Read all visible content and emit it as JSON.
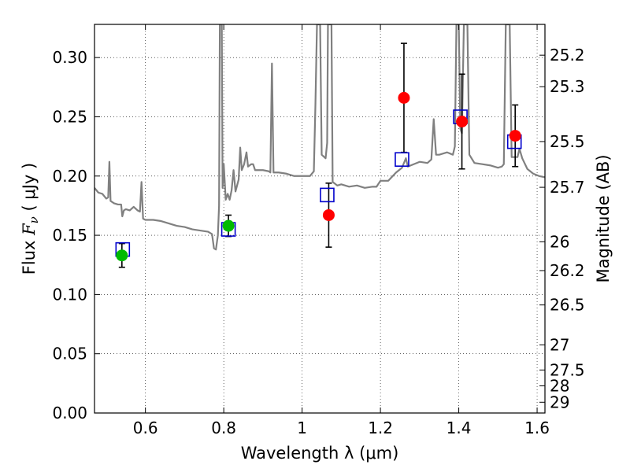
{
  "chart_data": {
    "type": "scatter",
    "title": "",
    "xlabel": "Wavelength  λ (μm)",
    "ylabel_prefix": "Flux  ",
    "ylabel_symbol": "F",
    "ylabel_subscript": "ν",
    "ylabel_suffix": "  ( μJy )",
    "y2label": "Magnitude (AB)",
    "xlim": [
      0.47,
      1.62
    ],
    "ylim": [
      0.0,
      0.328
    ],
    "grid": true,
    "x_ticks": [
      0.6,
      0.8,
      1.0,
      1.2,
      1.4,
      1.6
    ],
    "x_tick_labels": [
      "0.6",
      "0.8",
      "1",
      "1.2",
      "1.4",
      "1.6"
    ],
    "y_ticks": [
      0.0,
      0.05,
      0.1,
      0.15,
      0.2,
      0.25,
      0.3
    ],
    "y_tick_labels": [
      "0.00",
      "0.05",
      "0.10",
      "0.15",
      "0.20",
      "0.25",
      "0.30"
    ],
    "y2_ticks": [
      {
        "label": "25.2",
        "flux": 0.302
      },
      {
        "label": "25.3",
        "flux": 0.2754
      },
      {
        "label": "25.5",
        "flux": 0.2291
      },
      {
        "label": "25.7",
        "flux": 0.1905
      },
      {
        "label": "26",
        "flux": 0.1445
      },
      {
        "label": "26.2",
        "flux": 0.1202
      },
      {
        "label": "26.5",
        "flux": 0.0912
      },
      {
        "label": "27",
        "flux": 0.0575
      },
      {
        "label": "27.5",
        "flux": 0.0363
      },
      {
        "label": "28",
        "flux": 0.0229
      },
      {
        "label": "29",
        "flux": 0.0091
      }
    ],
    "colors": {
      "model": "#808080",
      "green_points": "#00bb00",
      "red_points": "#ff0000",
      "model_boxes": "#0000cc",
      "error_bars": "#000000"
    },
    "series": [
      {
        "kind": "model_spectrum",
        "points": [
          [
            0.47,
            0.19
          ],
          [
            0.48,
            0.186
          ],
          [
            0.49,
            0.185
          ],
          [
            0.5,
            0.181
          ],
          [
            0.505,
            0.182
          ],
          [
            0.508,
            0.212
          ],
          [
            0.511,
            0.179
          ],
          [
            0.52,
            0.177
          ],
          [
            0.53,
            0.176
          ],
          [
            0.538,
            0.176
          ],
          [
            0.541,
            0.166
          ],
          [
            0.545,
            0.171
          ],
          [
            0.55,
            0.172
          ],
          [
            0.56,
            0.171
          ],
          [
            0.57,
            0.174
          ],
          [
            0.58,
            0.171
          ],
          [
            0.586,
            0.17
          ],
          [
            0.59,
            0.195
          ],
          [
            0.594,
            0.164
          ],
          [
            0.6,
            0.163
          ],
          [
            0.62,
            0.163
          ],
          [
            0.64,
            0.162
          ],
          [
            0.66,
            0.16
          ],
          [
            0.68,
            0.158
          ],
          [
            0.7,
            0.157
          ],
          [
            0.72,
            0.155
          ],
          [
            0.74,
            0.154
          ],
          [
            0.76,
            0.153
          ],
          [
            0.77,
            0.151
          ],
          [
            0.775,
            0.139
          ],
          [
            0.78,
            0.138
          ],
          [
            0.785,
            0.15
          ],
          [
            0.788,
            0.175
          ],
          [
            0.79,
            0.328
          ],
          [
            0.795,
            0.328
          ],
          [
            0.797,
            0.19
          ],
          [
            0.8,
            0.21
          ],
          [
            0.805,
            0.18
          ],
          [
            0.81,
            0.185
          ],
          [
            0.815,
            0.18
          ],
          [
            0.82,
            0.188
          ],
          [
            0.825,
            0.205
          ],
          [
            0.83,
            0.187
          ],
          [
            0.838,
            0.197
          ],
          [
            0.842,
            0.224
          ],
          [
            0.846,
            0.205
          ],
          [
            0.852,
            0.21
          ],
          [
            0.858,
            0.22
          ],
          [
            0.862,
            0.208
          ],
          [
            0.87,
            0.21
          ],
          [
            0.875,
            0.21
          ],
          [
            0.88,
            0.205
          ],
          [
            0.9,
            0.205
          ],
          [
            0.915,
            0.204
          ],
          [
            0.919,
            0.203
          ],
          [
            0.923,
            0.295
          ],
          [
            0.927,
            0.203
          ],
          [
            0.94,
            0.203
          ],
          [
            0.96,
            0.202
          ],
          [
            0.98,
            0.2
          ],
          [
            1.0,
            0.2
          ],
          [
            1.02,
            0.2
          ],
          [
            1.03,
            0.204
          ],
          [
            1.034,
            0.26
          ],
          [
            1.038,
            0.328
          ],
          [
            1.046,
            0.328
          ],
          [
            1.05,
            0.218
          ],
          [
            1.06,
            0.215
          ],
          [
            1.064,
            0.228
          ],
          [
            1.066,
            0.328
          ],
          [
            1.075,
            0.328
          ],
          [
            1.078,
            0.195
          ],
          [
            1.09,
            0.192
          ],
          [
            1.1,
            0.193
          ],
          [
            1.12,
            0.191
          ],
          [
            1.14,
            0.192
          ],
          [
            1.16,
            0.19
          ],
          [
            1.18,
            0.191
          ],
          [
            1.19,
            0.191
          ],
          [
            1.2,
            0.196
          ],
          [
            1.22,
            0.196
          ],
          [
            1.24,
            0.203
          ],
          [
            1.255,
            0.207
          ],
          [
            1.265,
            0.215
          ],
          [
            1.27,
            0.208
          ],
          [
            1.3,
            0.212
          ],
          [
            1.32,
            0.211
          ],
          [
            1.33,
            0.214
          ],
          [
            1.336,
            0.248
          ],
          [
            1.342,
            0.218
          ],
          [
            1.35,
            0.218
          ],
          [
            1.37,
            0.22
          ],
          [
            1.385,
            0.218
          ],
          [
            1.39,
            0.225
          ],
          [
            1.394,
            0.328
          ],
          [
            1.4,
            0.328
          ],
          [
            1.404,
            0.24
          ],
          [
            1.408,
            0.236
          ],
          [
            1.413,
            0.328
          ],
          [
            1.422,
            0.328
          ],
          [
            1.427,
            0.218
          ],
          [
            1.44,
            0.211
          ],
          [
            1.46,
            0.21
          ],
          [
            1.48,
            0.209
          ],
          [
            1.5,
            0.207
          ],
          [
            1.51,
            0.208
          ],
          [
            1.515,
            0.21
          ],
          [
            1.52,
            0.328
          ],
          [
            1.53,
            0.328
          ],
          [
            1.535,
            0.216
          ],
          [
            1.55,
            0.216
          ],
          [
            1.555,
            0.223
          ],
          [
            1.562,
            0.215
          ],
          [
            1.575,
            0.206
          ],
          [
            1.59,
            0.202
          ],
          [
            1.605,
            0.2
          ],
          [
            1.62,
            0.199
          ]
        ]
      },
      {
        "kind": "photometry_green",
        "points": [
          {
            "x": 0.54,
            "y": 0.133,
            "err": 0.01
          },
          {
            "x": 0.812,
            "y": 0.158,
            "err": 0.009
          }
        ]
      },
      {
        "kind": "photometry_red",
        "points": [
          {
            "x": 1.068,
            "y": 0.167,
            "err": 0.027
          },
          {
            "x": 1.26,
            "y": 0.266,
            "err": 0.046
          },
          {
            "x": 1.408,
            "y": 0.246,
            "err": 0.04
          },
          {
            "x": 1.544,
            "y": 0.234,
            "err": 0.026
          }
        ]
      },
      {
        "kind": "model_boxes",
        "points": [
          {
            "x": 0.542,
            "y": 0.138
          },
          {
            "x": 0.812,
            "y": 0.155
          },
          {
            "x": 1.064,
            "y": 0.184
          },
          {
            "x": 1.255,
            "y": 0.214
          },
          {
            "x": 1.404,
            "y": 0.25
          },
          {
            "x": 1.542,
            "y": 0.229
          }
        ]
      }
    ]
  }
}
